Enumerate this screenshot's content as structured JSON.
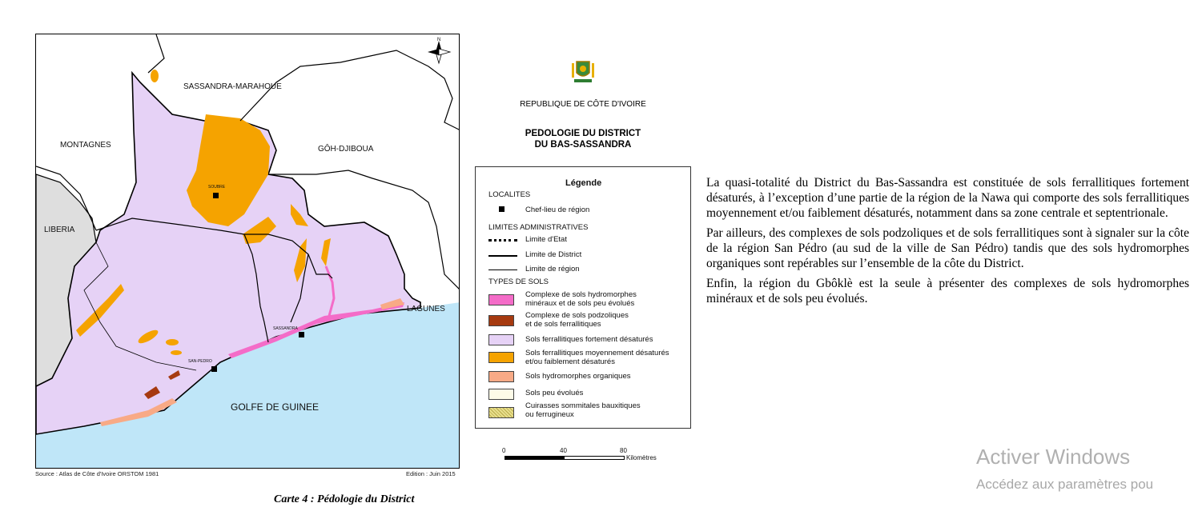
{
  "map": {
    "regions": {
      "sassandra_marahoue": "SASSANDRA-MARAHOUE",
      "montagnes": "MONTAGNES",
      "goh_djiboua": "GÔH-DJIBOUA",
      "liberia": "LIBERIA",
      "lagunes": "LAGUNES",
      "golfe": "GOLFE DE GUINEE"
    },
    "cities": {
      "soubre": "SOUBRE",
      "sassandra": "SASSANDRA",
      "san_pedro": "SAN-PEDRO"
    },
    "north_label": "N",
    "source": "Source : Atlas de Côte d'Ivoire ORSTOM 1981",
    "edition": "Edition : Juin 2015"
  },
  "caption": "Carte 4 : Pédologie du District",
  "header": {
    "country": "REPUBLIQUE DE CÔTE D'IVOIRE",
    "title_line1": "PEDOLOGIE DU DISTRICT",
    "title_line2": "DU BAS-SASSANDRA"
  },
  "legend": {
    "title": "Légende",
    "localites": "LOCALITES",
    "chef_lieu": "Chef-lieu de région",
    "limites": "LIMITES ADMINISTRATIVES",
    "limite_etat": "Limite d'Etat",
    "limite_district": "Limite de District",
    "limite_region": "Limite de région",
    "types": "TYPES DE SOLS",
    "soil_items": [
      {
        "line1": "Complexe de sols hydromorphes",
        "line2": "minéraux et de sols peu évolués",
        "color": "#f46cc8"
      },
      {
        "line1": "Complexe de sols podzoliques",
        "line2": "et de sols ferrallitiques",
        "color": "#a63a10"
      },
      {
        "line1": "Sols ferrallitiques fortement désaturés",
        "line2": "",
        "color": "#e6d2f6"
      },
      {
        "line1": "Sols ferrallitiques moyennement désaturés",
        "line2": "et/ou faiblement désaturés",
        "color": "#f5a300"
      },
      {
        "line1": "Sols hydromorphes organiques",
        "line2": "",
        "color": "#f8aa86"
      },
      {
        "line1": "Sols peu évolués",
        "line2": "",
        "color": "#fdfbe8"
      },
      {
        "line1": "Cuirasses sommitales bauxitiques",
        "line2": "ou ferrugineux",
        "color": "#e8df8c"
      }
    ]
  },
  "scale": {
    "t0": "0",
    "t40": "40",
    "t80": "80",
    "unit": "Kilomètres"
  },
  "text": {
    "p1": "La quasi-totalité du District du Bas-Sassandra est constituée de sols ferrallitiques fortement désaturés, à l’exception d’une partie de la région de la Nawa qui comporte des sols ferrallitiques moyennement et/ou faiblement désaturés, notamment dans sa zone centrale et septentrionale.",
    "p2": "Par ailleurs, des complexes de sols podzoliques et de sols ferrallitiques sont à signaler sur la côte de la région San Pédro (au sud de la ville de San Pédro) tandis que des sols hydromorphes organiques sont repérables sur l’ensemble de la côte du District.",
    "p3": "Enfin, la région du Gbôklè est la seule à présenter des complexes de sols hydromorphes minéraux et de sols peu évolués."
  },
  "watermark": {
    "line1": "Activer Windows",
    "line2": "Accédez aux paramètres pou"
  },
  "colors": {
    "district": "#e6d2f6",
    "ferral_moyen": "#f5a300",
    "sea": "#bfe6f8",
    "liberia": "#dedede",
    "hydro_mineral": "#f46cc8",
    "podzol": "#a63a10",
    "hydro_org": "#f8aa86"
  }
}
